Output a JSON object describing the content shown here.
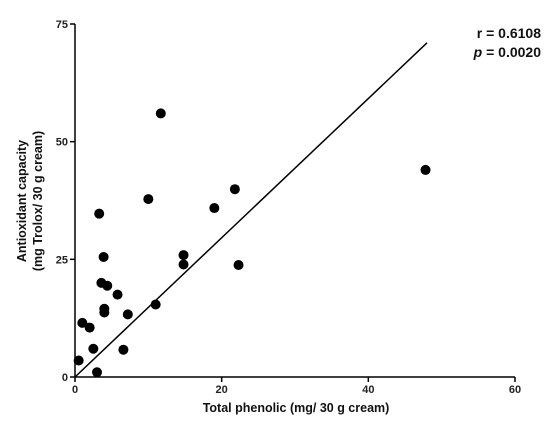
{
  "chart_data": {
    "type": "scatter",
    "title": "",
    "xlabel": "Total phenolic (mg/ 30 g cream)",
    "ylabel_lines": [
      "Antioxidant capacity",
      "(mg Trolox/ 30 g cream)"
    ],
    "xlim": [
      0,
      60
    ],
    "ylim": [
      0,
      75
    ],
    "xticks": [
      0,
      20,
      40,
      60
    ],
    "yticks": [
      0,
      25,
      50,
      75
    ],
    "grid": false,
    "points": [
      {
        "x": 0.5,
        "y": 3.5
      },
      {
        "x": 1.0,
        "y": 11.5
      },
      {
        "x": 2.0,
        "y": 10.5
      },
      {
        "x": 2.5,
        "y": 6.0
      },
      {
        "x": 3.0,
        "y": 1.0
      },
      {
        "x": 3.3,
        "y": 34.7
      },
      {
        "x": 3.6,
        "y": 20.0
      },
      {
        "x": 3.9,
        "y": 25.5
      },
      {
        "x": 4.0,
        "y": 14.5
      },
      {
        "x": 4.0,
        "y": 13.7
      },
      {
        "x": 4.4,
        "y": 19.4
      },
      {
        "x": 5.8,
        "y": 17.5
      },
      {
        "x": 6.6,
        "y": 5.8
      },
      {
        "x": 7.2,
        "y": 13.3
      },
      {
        "x": 10.0,
        "y": 37.8
      },
      {
        "x": 11.0,
        "y": 15.4
      },
      {
        "x": 11.7,
        "y": 56.0
      },
      {
        "x": 14.8,
        "y": 25.9
      },
      {
        "x": 14.8,
        "y": 23.9
      },
      {
        "x": 19.0,
        "y": 35.9
      },
      {
        "x": 21.8,
        "y": 39.9
      },
      {
        "x": 22.3,
        "y": 23.8
      },
      {
        "x": 47.8,
        "y": 44.0
      }
    ],
    "regression_line": {
      "x1": 0.0,
      "y1": 0.0,
      "x2": 48.0,
      "y2": 71.0
    },
    "annotation": {
      "r_text": "r = 0.6108",
      "p_label": "p",
      "p_value": " = 0.0020"
    }
  }
}
